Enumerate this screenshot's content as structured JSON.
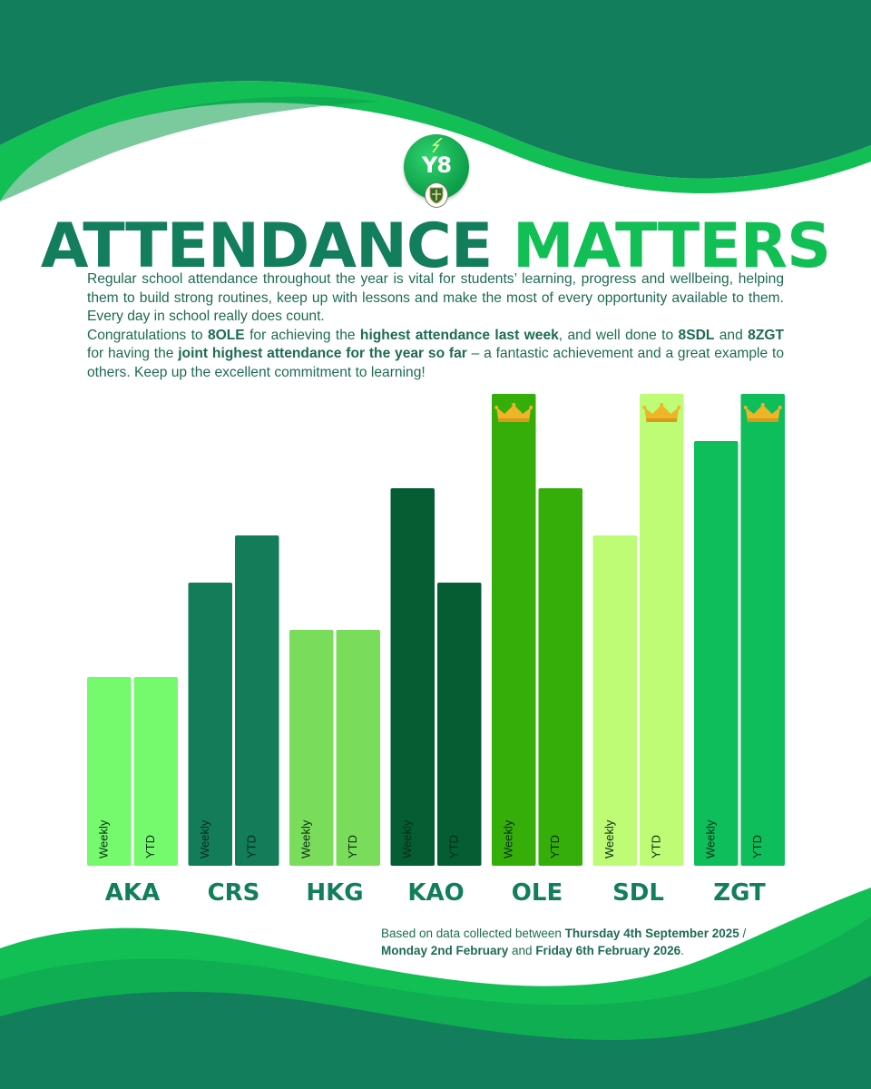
{
  "badge": {
    "label": "Y8"
  },
  "title": {
    "part1": "ATTENDANCE",
    "part2": "MATTERS"
  },
  "intro": {
    "p1": "Regular school attendance throughout the year is vital for students’ learning, progress and wellbeing, helping them to build strong routines, keep up with lessons and make the most of every opportunity available to them. Every day in school really does count.",
    "p2_a": "Congratulations to ",
    "p2_b": "8OLE",
    "p2_c": " for achieving the ",
    "p2_d": "highest attendance last week",
    "p2_e": ", and well done to ",
    "p2_f": "8SDL",
    "p2_g": " and ",
    "p2_h": "8ZGT",
    "p2_i": " for having the ",
    "p2_j": "joint highest attendance for the year so far",
    "p2_k": " – a fantastic achievement and a great example to others. Keep up the excellent commitment to learning!"
  },
  "footnote": {
    "a": "Based on data collected between ",
    "b": "Thursday 4th September 2025",
    "c": " / ",
    "d": "Monday 2nd February",
    "e": " and ",
    "f": "Friday 6th February 2026",
    "g": "."
  },
  "colors": {
    "wave_dark": "#137e5b",
    "wave_light": "#12bf55",
    "title_dark": "#137e5b",
    "title_light": "#12bf55",
    "crown": "#f0b429"
  },
  "chart_data": {
    "type": "bar",
    "title": "",
    "xlabel": "",
    "ylabel": "",
    "ylim": [
      0,
      10
    ],
    "series": [
      {
        "name": "Weekly",
        "values": [
          4,
          6,
          5,
          8,
          10,
          7,
          9
        ]
      },
      {
        "name": "YTD",
        "values": [
          4,
          7,
          5,
          6,
          8,
          10,
          10
        ]
      }
    ],
    "categories": [
      {
        "label": "AKA",
        "weekly": 4,
        "ytd": 4,
        "weekly_color": "#74fa6c",
        "ytd_color": "#74fa6c",
        "weekly_crown": false,
        "ytd_crown": false
      },
      {
        "label": "CRS",
        "weekly": 6,
        "ytd": 7,
        "weekly_color": "#137d5a",
        "ytd_color": "#137d5a",
        "weekly_crown": false,
        "ytd_crown": false
      },
      {
        "label": "HKG",
        "weekly": 5,
        "ytd": 5,
        "weekly_color": "#7adc5b",
        "ytd_color": "#7adc5b",
        "weekly_crown": false,
        "ytd_crown": false
      },
      {
        "label": "KAO",
        "weekly": 8,
        "ytd": 6,
        "weekly_color": "#045d33",
        "ytd_color": "#045d33",
        "weekly_crown": false,
        "ytd_crown": false
      },
      {
        "label": "OLE",
        "weekly": 10,
        "ytd": 8,
        "weekly_color": "#35ae0a",
        "ytd_color": "#35ae0a",
        "weekly_crown": true,
        "ytd_crown": false
      },
      {
        "label": "SDL",
        "weekly": 7,
        "ytd": 10,
        "weekly_color": "#befc76",
        "ytd_color": "#befc76",
        "weekly_crown": false,
        "ytd_crown": true
      },
      {
        "label": "ZGT",
        "weekly": 9,
        "ytd": 10,
        "weekly_color": "#0dbe5b",
        "ytd_color": "#0dbe5b",
        "weekly_crown": false,
        "ytd_crown": true
      }
    ],
    "bar_labels": {
      "weekly": "Weekly",
      "ytd": "YTD"
    }
  }
}
